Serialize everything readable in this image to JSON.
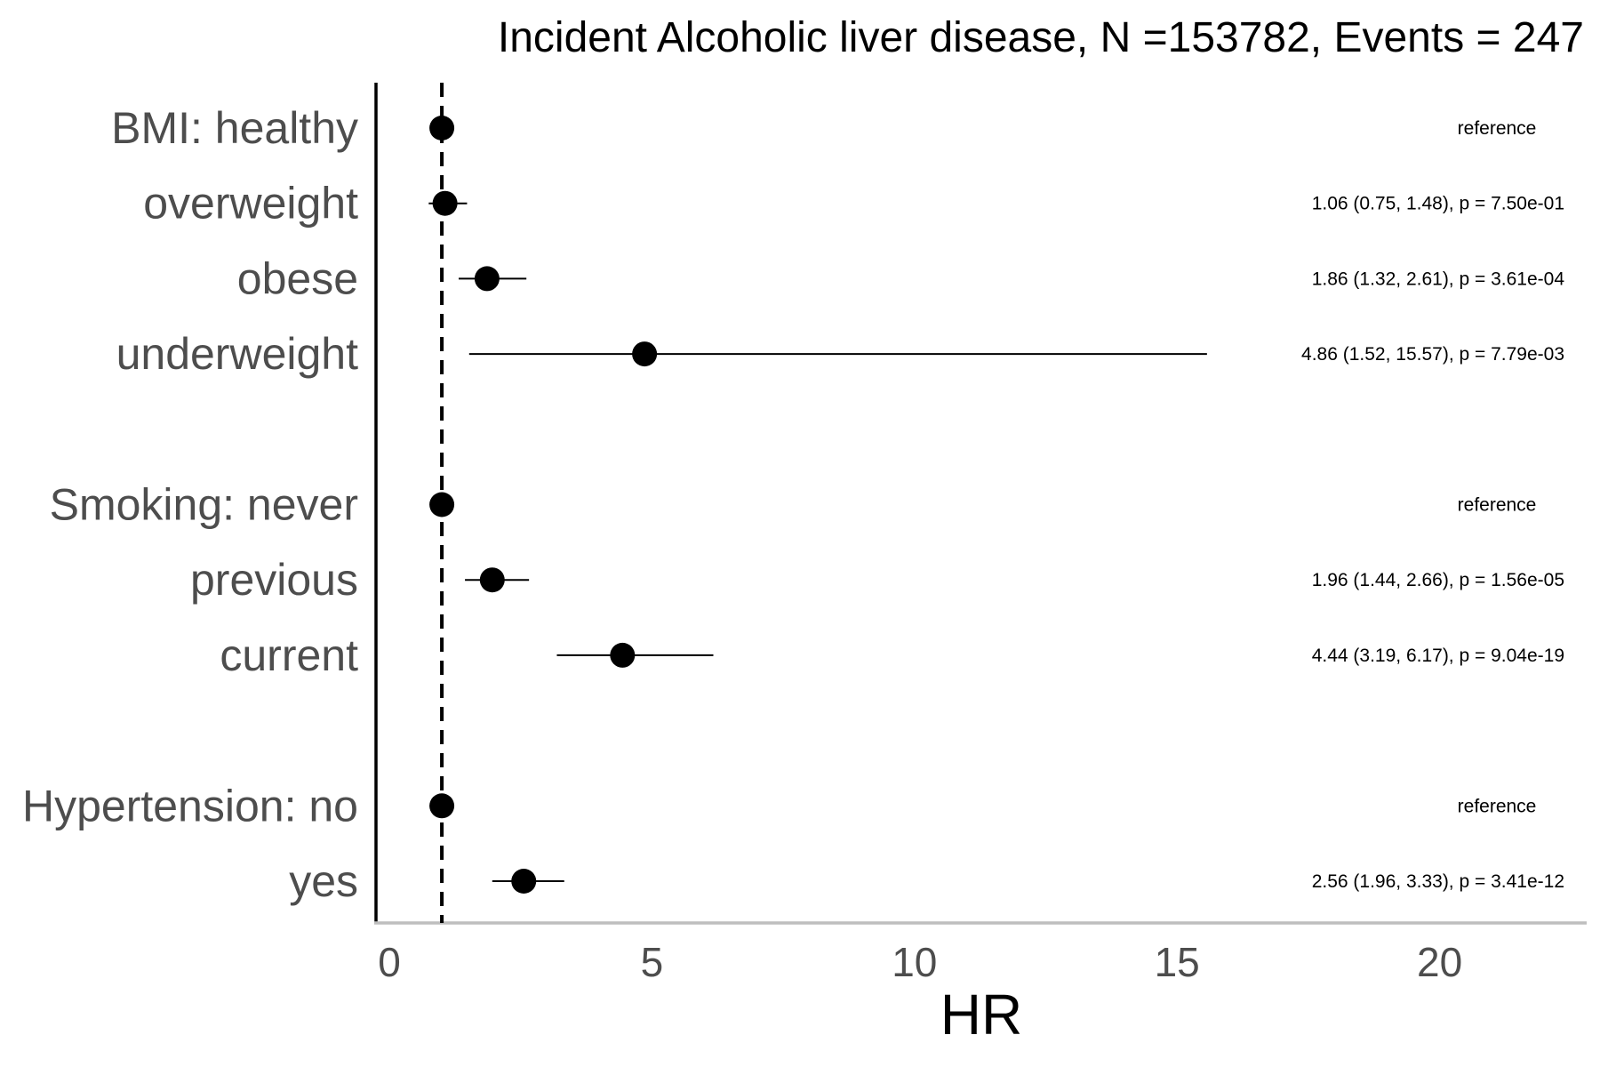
{
  "chart_data": {
    "type": "forest",
    "title": "Incident Alcoholic liver disease, N =153782, Events = 247",
    "xlabel": "HR",
    "xlim": [
      0,
      22.8
    ],
    "xticks": [
      0,
      5,
      10,
      15,
      20
    ],
    "xtick_labels": [
      "0",
      "5",
      "10",
      "15",
      "20"
    ],
    "reference_line": 1,
    "grid": false,
    "rows": [
      {
        "label": "BMI: healthy",
        "hr": 1.0,
        "lower": null,
        "upper": null,
        "annotation": "reference",
        "row_index": 0
      },
      {
        "label": "overweight",
        "hr": 1.06,
        "lower": 0.75,
        "upper": 1.48,
        "annotation": "1.06 (0.75, 1.48), p = 7.50e-01",
        "row_index": 1
      },
      {
        "label": "obese",
        "hr": 1.86,
        "lower": 1.32,
        "upper": 2.61,
        "annotation": "1.86 (1.32, 2.61), p = 3.61e-04",
        "row_index": 2
      },
      {
        "label": "underweight",
        "hr": 4.86,
        "lower": 1.52,
        "upper": 15.57,
        "annotation": "4.86 (1.52, 15.57), p = 7.79e-03",
        "row_index": 3
      },
      {
        "label": "Smoking: never",
        "hr": 1.0,
        "lower": null,
        "upper": null,
        "annotation": "reference",
        "row_index": 5
      },
      {
        "label": "previous",
        "hr": 1.96,
        "lower": 1.44,
        "upper": 2.66,
        "annotation": "1.96 (1.44, 2.66), p = 1.56e-05",
        "row_index": 6
      },
      {
        "label": "current",
        "hr": 4.44,
        "lower": 3.19,
        "upper": 6.17,
        "annotation": "4.44 (3.19, 6.17), p = 9.04e-19",
        "row_index": 7
      },
      {
        "label": "Hypertension: no",
        "hr": 1.0,
        "lower": null,
        "upper": null,
        "annotation": "reference",
        "row_index": 9
      },
      {
        "label": "yes",
        "hr": 2.56,
        "lower": 1.96,
        "upper": 3.33,
        "annotation": "2.56 (1.96, 3.33), p = 3.41e-12",
        "row_index": 10
      }
    ]
  },
  "colors": {
    "point": "#000000",
    "ci_line": "#000000",
    "reference_line": "#000000",
    "y_axis": "#000000",
    "x_axis": "#bebebe",
    "label_text": "#4d4d4d"
  }
}
